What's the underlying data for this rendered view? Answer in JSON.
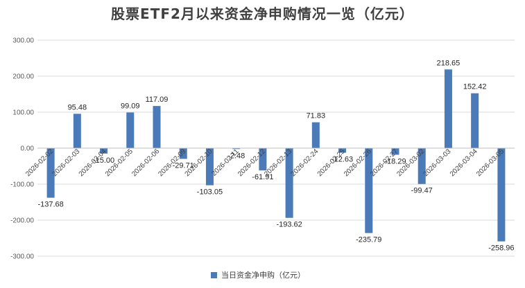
{
  "chart_data": {
    "type": "bar",
    "title": "股票ETF2月以来资金净申购情况一览（亿元）",
    "series_name": "当日资金净申购（亿元）",
    "color": "#4a7ab8",
    "ylim": [
      -300,
      300
    ],
    "yticks": [
      "300.00",
      "200.00",
      "100.00",
      "0.00",
      "-100.00",
      "-200.00",
      "-300.00"
    ],
    "ytick_values": [
      300,
      200,
      100,
      0,
      -100,
      -200,
      -300
    ],
    "categories": [
      "2026-02-02",
      "2026-02-03",
      "2026-02-04",
      "2026-02-05",
      "2026-02-06",
      "2026-02-09",
      "2026-02-10",
      "2026-02-11",
      "2026-02-12",
      "2026-02-13",
      "2026-02-24",
      "2026-02-25",
      "2026-02-26",
      "2026-02-27",
      "2026-03-02",
      "2026-03-03",
      "2026-03-04",
      "2026-03-05"
    ],
    "values": [
      -137.68,
      95.48,
      -15.0,
      99.09,
      117.09,
      -29.71,
      -103.05,
      -2.48,
      -61.91,
      -193.62,
      71.83,
      -12.63,
      -235.79,
      -18.29,
      -99.47,
      218.65,
      152.42,
      -258.96
    ],
    "value_labels": [
      "-137.68",
      "95.48",
      "-15.00",
      "99.09",
      "117.09",
      "-29.71",
      "-103.05",
      "-2.48",
      "-61.91",
      "-193.62",
      "71.83",
      "-12.63",
      "-235.79",
      "-18.29",
      "-99.47",
      "218.65",
      "152.42",
      "-258.96"
    ],
    "grid": true,
    "legend_position": "bottom"
  }
}
